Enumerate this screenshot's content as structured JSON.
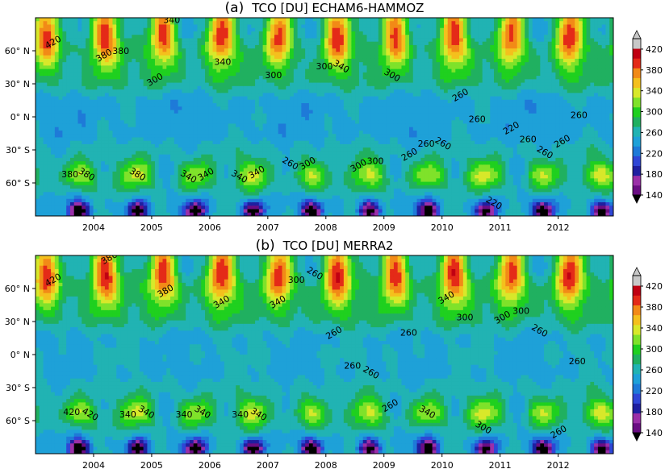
{
  "chart_data": [
    {
      "type": "heatmap",
      "panel_label": "(a)",
      "title": "TCO [DU] ECHAM6-HAMMOZ",
      "x_ticks": [
        "2004",
        "2005",
        "2006",
        "2007",
        "2008",
        "2009",
        "2010",
        "2011",
        "2012"
      ],
      "y_ticks": [
        "60° N",
        "30° N",
        "0° N",
        "30° S",
        "60° S"
      ],
      "xlim": [
        2003.0,
        2012.95
      ],
      "ylim": [
        -90,
        90
      ],
      "contour_labels": [
        "420",
        "380",
        "380",
        "380",
        "380",
        "380",
        "300",
        "340",
        "340",
        "340",
        "340",
        "340",
        "340",
        "300",
        "260",
        "300",
        "300",
        "340",
        "300",
        "300",
        "300",
        "260",
        "260",
        "260",
        "260",
        "260",
        "220",
        "220",
        "260",
        "260",
        "260",
        "260"
      ],
      "colorbar": {
        "levels": [
          140,
          160,
          180,
          200,
          220,
          240,
          260,
          280,
          300,
          320,
          340,
          360,
          380,
          400,
          420,
          440
        ],
        "tick_labels": [
          "140",
          "180",
          "220",
          "260",
          "300",
          "340",
          "380",
          "420"
        ],
        "colors": [
          "#6a0d83",
          "#9b2fa8",
          "#1f1fa0",
          "#2f46d6",
          "#1e7ad8",
          "#1ea1d8",
          "#21b3b3",
          "#20b060",
          "#1fd01f",
          "#7fe22a",
          "#d8e82a",
          "#f4c01d",
          "#f28a17",
          "#e42a18",
          "#c00012",
          "#c8c8c8"
        ],
        "under_color": "#000000",
        "over_color": "#c8c8c8"
      }
    },
    {
      "type": "heatmap",
      "panel_label": "(b)",
      "title": "TCO [DU] MERRA2",
      "x_ticks": [
        "2004",
        "2005",
        "2006",
        "2007",
        "2008",
        "2009",
        "2010",
        "2011",
        "2012"
      ],
      "y_ticks": [
        "60° N",
        "30° N",
        "0° N",
        "30° S",
        "60° S"
      ],
      "xlim": [
        2003.0,
        2012.95
      ],
      "ylim": [
        -90,
        90
      ],
      "contour_labels": [
        "420",
        "420",
        "420",
        "380",
        "340",
        "340",
        "380",
        "340",
        "340",
        "340",
        "340",
        "340",
        "340",
        "300",
        "260",
        "260",
        "260",
        "260",
        "260",
        "260",
        "340",
        "340",
        "300",
        "300",
        "300",
        "300",
        "260",
        "260",
        "260"
      ],
      "colorbar": {
        "levels": [
          140,
          160,
          180,
          200,
          220,
          240,
          260,
          280,
          300,
          320,
          340,
          360,
          380,
          400,
          420,
          440
        ],
        "tick_labels": [
          "140",
          "180",
          "220",
          "260",
          "300",
          "340",
          "380",
          "420"
        ],
        "colors": [
          "#6a0d83",
          "#9b2fa8",
          "#1f1fa0",
          "#2f46d6",
          "#1e7ad8",
          "#1ea1d8",
          "#21b3b3",
          "#20b060",
          "#1fd01f",
          "#7fe22a",
          "#d8e82a",
          "#f4c01d",
          "#f28a17",
          "#e42a18",
          "#c00012",
          "#c8c8c8"
        ],
        "under_color": "#000000",
        "over_color": "#c8c8c8"
      }
    }
  ]
}
